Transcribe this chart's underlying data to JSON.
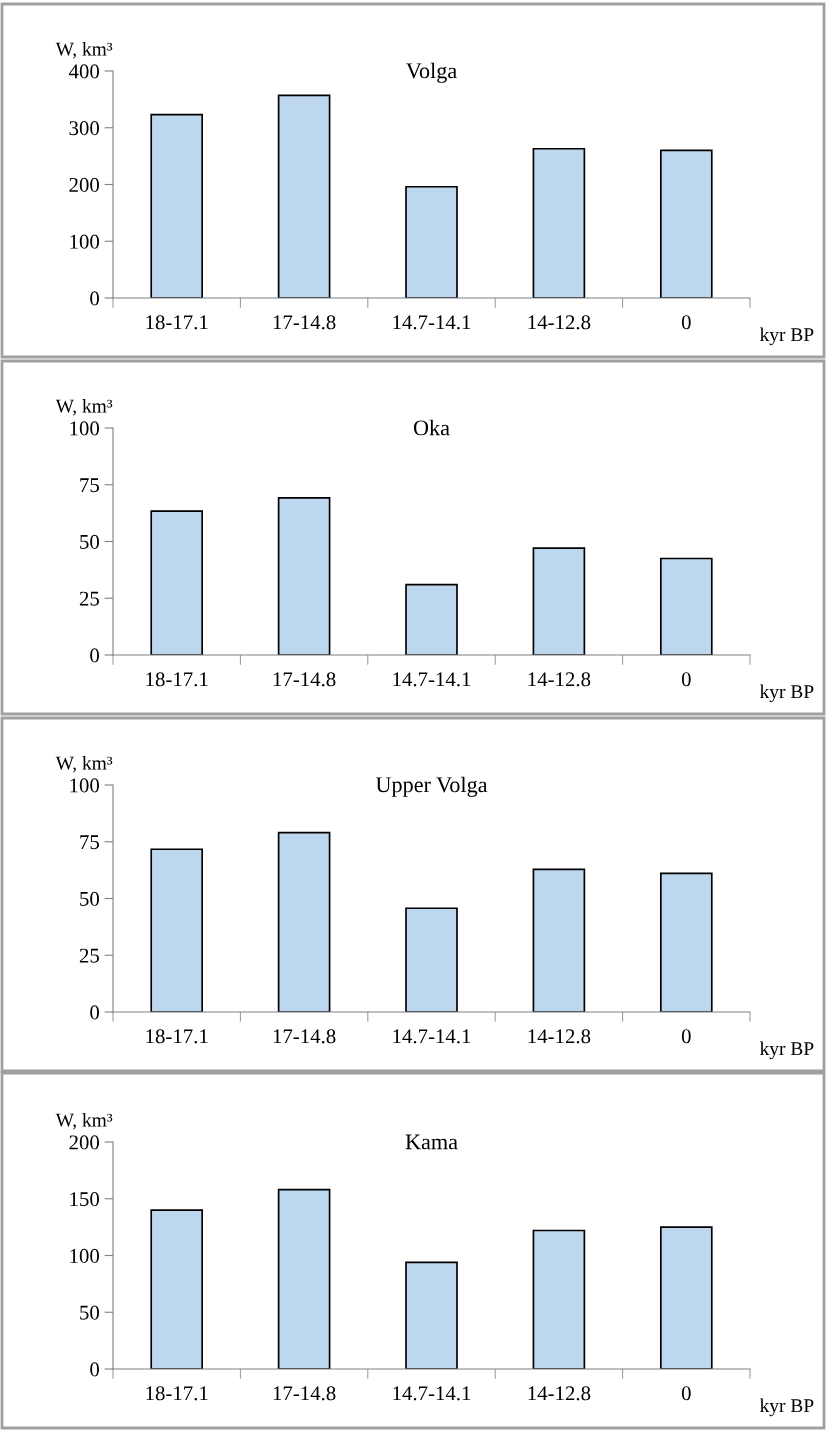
{
  "chart_data": [
    {
      "type": "bar",
      "title": "Volga",
      "ylabel": "W, km³",
      "xlabel": "kyr BP",
      "categories": [
        "18-17.1",
        "17-14.8",
        "14.7-14.1",
        "14-12.8",
        "0"
      ],
      "values": [
        323,
        357,
        196,
        263,
        260
      ],
      "color": "#bdd7ee",
      "ylim": [
        0,
        400
      ],
      "yticks": [
        0,
        100,
        200,
        300,
        400
      ],
      "grid": false
    },
    {
      "type": "bar",
      "title": "Oka",
      "ylabel": "W, km³",
      "xlabel": "kyr BP",
      "categories": [
        "18-17.1",
        "17-14.8",
        "14.7-14.1",
        "14-12.8",
        "0"
      ],
      "values": [
        63.4,
        69.2,
        31,
        47.1,
        42.5
      ],
      "color": "#bdd7ee",
      "ylim": [
        0,
        100
      ],
      "yticks": [
        0,
        25,
        50,
        75,
        100
      ],
      "grid": false
    },
    {
      "type": "bar",
      "title": "Upper Volga",
      "ylabel": "W, km³",
      "xlabel": "kyr BP",
      "categories": [
        "18-17.1",
        "17-14.8",
        "14.7-14.1",
        "14-12.8",
        "0"
      ],
      "values": [
        71.7,
        79,
        45.7,
        62.8,
        61.1
      ],
      "color": "#bdd7ee",
      "ylim": [
        0,
        100
      ],
      "yticks": [
        0,
        25,
        50,
        75,
        100
      ],
      "grid": false
    },
    {
      "type": "bar",
      "title": "Kama",
      "ylabel": "W, km³",
      "xlabel": "kyr BP",
      "categories": [
        "18-17.1",
        "17-14.8",
        "14.7-14.1",
        "14-12.8",
        "0"
      ],
      "values": [
        140,
        158,
        94,
        122,
        125
      ],
      "color": "#bdd7ee",
      "ylim": [
        0,
        200
      ],
      "yticks": [
        0,
        50,
        100,
        150,
        200
      ],
      "grid": false
    }
  ]
}
